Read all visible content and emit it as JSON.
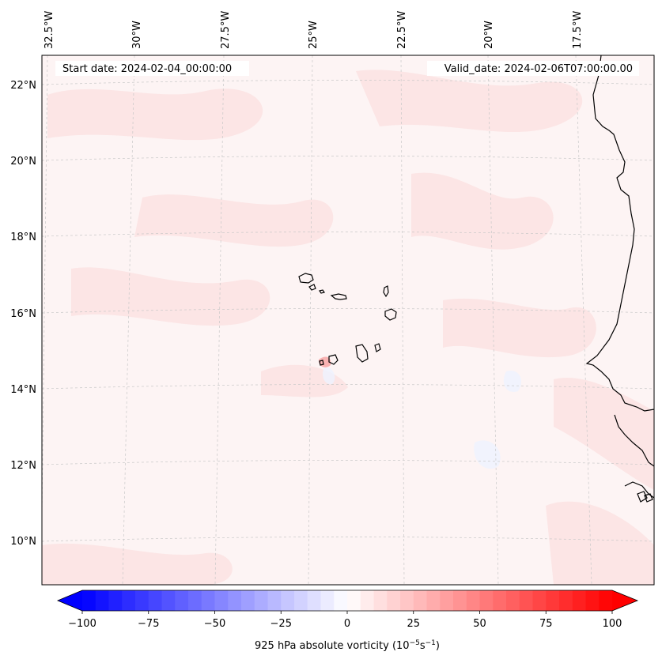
{
  "map": {
    "start_label": "Start date: 2024-02-04_00:00:00",
    "valid_label": "Valid_date: 2024-02-06T07:00:00.00",
    "lon_ticks": [
      "32.5°W",
      "30°W",
      "27.5°W",
      "25°W",
      "22.5°W",
      "20°W",
      "17.5°W"
    ],
    "lat_ticks": [
      "22°N",
      "20°N",
      "18°N",
      "16°N",
      "14°N",
      "12°N",
      "10°N"
    ],
    "land_color": "#fdf4f4",
    "coast_color": "#000000",
    "grid_color": "#c8c8c8"
  },
  "colorbar": {
    "title": "925 hPa absolute vorticity (10",
    "title_exp1": "−5",
    "title_mid": "s",
    "title_exp2": "−1",
    "title_end": ")",
    "tick_labels": [
      "−100",
      "−75",
      "−50",
      "−25",
      "0",
      "25",
      "50",
      "75",
      "100"
    ],
    "min": -100,
    "max": 100,
    "step": 5,
    "colormap": "bwr",
    "low_color": "#0000ff",
    "mid_color": "#ffffff",
    "high_color": "#ff0000"
  }
}
